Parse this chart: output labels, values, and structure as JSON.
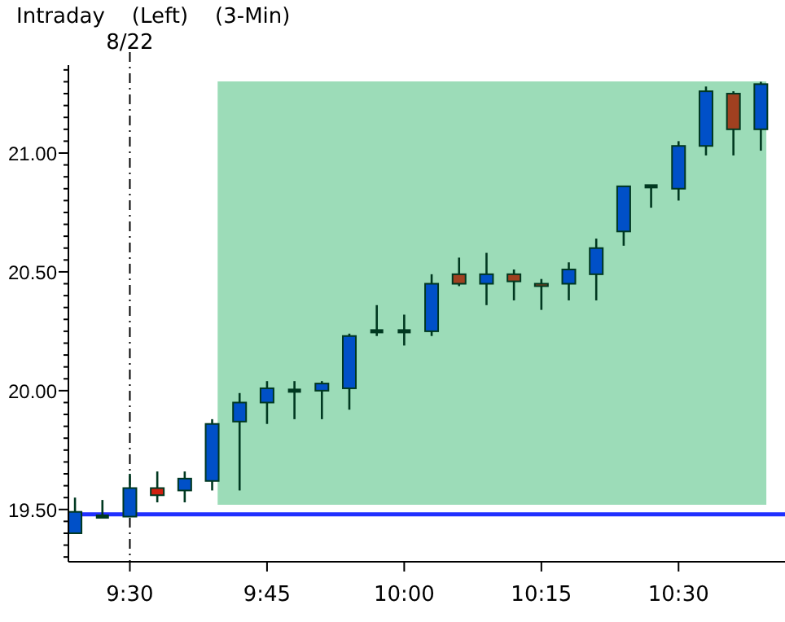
{
  "chart_data": {
    "type": "candlestick",
    "title": "Intraday    (Left)    (3-Min)",
    "x": [
      9.4,
      9.45,
      9.5,
      9.55,
      9.6,
      9.65,
      9.7,
      9.75,
      9.8,
      9.85,
      9.9,
      9.95,
      10,
      10.05,
      10.1,
      10.15,
      10.2,
      10.25,
      10.3,
      10.35,
      10.4,
      10.45,
      10.5,
      10.55,
      10.6,
      10.65
    ],
    "ohlc": [
      [
        19.4,
        19.55,
        19.4,
        19.49
      ],
      [
        19.47,
        19.54,
        19.47,
        19.47
      ],
      [
        19.47,
        19.65,
        19.47,
        19.59
      ],
      [
        19.59,
        19.66,
        19.53,
        19.56
      ],
      [
        19.58,
        19.66,
        19.53,
        19.63
      ],
      [
        19.62,
        19.88,
        19.58,
        19.86
      ],
      [
        19.87,
        19.99,
        19.58,
        19.95
      ],
      [
        19.95,
        20.04,
        19.86,
        20.01
      ],
      [
        20.0,
        20.04,
        19.88,
        20.0
      ],
      [
        20.0,
        20.04,
        19.88,
        20.03
      ],
      [
        20.01,
        20.24,
        19.92,
        20.23
      ],
      [
        20.25,
        20.36,
        20.23,
        20.25
      ],
      [
        20.25,
        20.32,
        20.19,
        20.25
      ],
      [
        20.25,
        20.49,
        20.23,
        20.45
      ],
      [
        20.49,
        20.56,
        20.44,
        20.45
      ],
      [
        20.45,
        20.58,
        20.36,
        20.49
      ],
      [
        20.49,
        20.51,
        20.38,
        20.46
      ],
      [
        20.45,
        20.47,
        20.34,
        20.44
      ],
      [
        20.45,
        20.54,
        20.38,
        20.51
      ],
      [
        20.49,
        20.64,
        20.38,
        20.6
      ],
      [
        20.67,
        20.86,
        20.61,
        20.86
      ],
      [
        20.86,
        20.86,
        20.77,
        20.86
      ],
      [
        20.85,
        21.05,
        20.8,
        21.03
      ],
      [
        21.03,
        21.28,
        20.99,
        21.26
      ],
      [
        21.25,
        21.26,
        20.99,
        21.1
      ],
      [
        21.1,
        21.3,
        21.01,
        21.29
      ]
    ],
    "colors": [
      "#0050c8",
      "#003820",
      "#0050c8",
      "#d02010",
      "#0050c8",
      "#0050c8",
      "#0050c8",
      "#0050c8",
      "#003820",
      "#0050c8",
      "#0050c8",
      "#003820",
      "#003820",
      "#0050c8",
      "#a04020",
      "#0050c8",
      "#a04020",
      "#a04020",
      "#0050c8",
      "#0050c8",
      "#0050c8",
      "#003820",
      "#0050c8",
      "#0050c8",
      "#a04020",
      "#0050c8"
    ],
    "xlim": [
      9.388,
      10.694
    ],
    "xticks": [
      {
        "value": 9.5,
        "label": "9:30"
      },
      {
        "value": 9.75,
        "label": "9:45"
      },
      {
        "value": 10,
        "label": "10:00"
      },
      {
        "value": 10.25,
        "label": "10:15"
      },
      {
        "value": 10.5,
        "label": "10:30"
      }
    ],
    "ylim": [
      19.28,
      21.37
    ],
    "yticks": [
      {
        "value": 19.3,
        "label": null
      },
      {
        "value": 19.35,
        "label": null
      },
      {
        "value": 19.4,
        "label": null
      },
      {
        "value": 19.45,
        "label": null
      },
      {
        "value": 19.5,
        "label": "19.50"
      },
      {
        "value": 19.55,
        "label": null
      },
      {
        "value": 19.6,
        "label": null
      },
      {
        "value": 19.65,
        "label": null
      },
      {
        "value": 19.7,
        "label": null
      },
      {
        "value": 19.75,
        "label": null
      },
      {
        "value": 19.8,
        "label": null
      },
      {
        "value": 19.85,
        "label": null
      },
      {
        "value": 19.9,
        "label": null
      },
      {
        "value": 19.95,
        "label": null
      },
      {
        "value": 20,
        "label": "20.00"
      },
      {
        "value": 20.05,
        "label": null
      },
      {
        "value": 20.1,
        "label": null
      },
      {
        "value": 20.15,
        "label": null
      },
      {
        "value": 20.2,
        "label": null
      },
      {
        "value": 20.25,
        "label": null
      },
      {
        "value": 20.3,
        "label": null
      },
      {
        "value": 20.35,
        "label": null
      },
      {
        "value": 20.4,
        "label": null
      },
      {
        "value": 20.45,
        "label": null
      },
      {
        "value": 20.5,
        "label": "20.50"
      },
      {
        "value": 20.55,
        "label": null
      },
      {
        "value": 20.6,
        "label": null
      },
      {
        "value": 20.65,
        "label": null
      },
      {
        "value": 20.7,
        "label": null
      },
      {
        "value": 20.75,
        "label": null
      },
      {
        "value": 20.8,
        "label": null
      },
      {
        "value": 20.85,
        "label": null
      },
      {
        "value": 20.9,
        "label": null
      },
      {
        "value": 20.95,
        "label": null
      },
      {
        "value": 21,
        "label": "21.00"
      },
      {
        "value": 21.05,
        "label": null
      },
      {
        "value": 21.1,
        "label": null
      },
      {
        "value": 21.15,
        "label": null
      },
      {
        "value": 21.2,
        "label": null
      },
      {
        "value": 21.25,
        "label": null
      },
      {
        "value": 21.3,
        "label": null
      },
      {
        "value": 21.35,
        "label": null
      }
    ],
    "annotations": [
      "8/22"
    ],
    "ref_lines": [
      {
        "axis": "x",
        "value": 9.5,
        "label": null,
        "color": "#000000",
        "line_style": "dashed"
      },
      {
        "axis": "y",
        "value": 19.48,
        "label": null,
        "color": "#2030ff",
        "line_style": "solid"
      }
    ],
    "bands": [
      {
        "axis": "x",
        "from": 9.66,
        "to": 10.66,
        "label": null,
        "color": "#9cdcb8"
      }
    ]
  }
}
